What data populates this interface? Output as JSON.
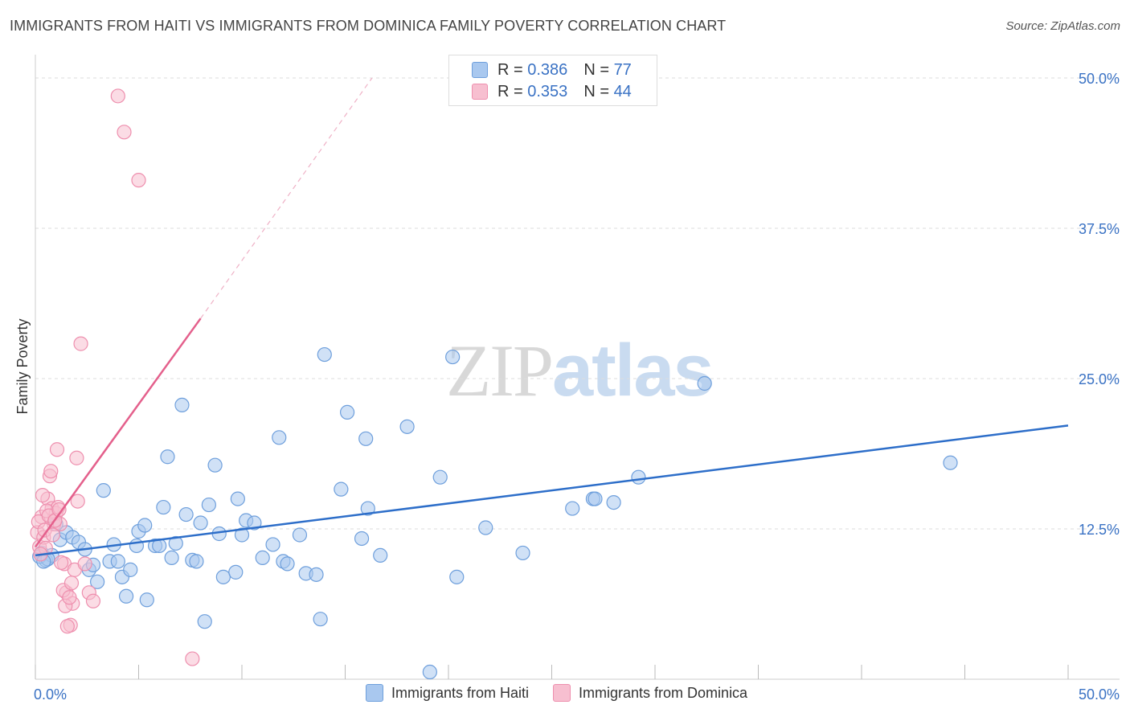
{
  "title": "IMMIGRANTS FROM HAITI VS IMMIGRANTS FROM DOMINICA FAMILY POVERTY CORRELATION CHART",
  "source": "Source: ZipAtlas.com",
  "watermark": {
    "zip": "ZIP",
    "atlas": "atlas"
  },
  "legend_top": {
    "haiti": {
      "r_label": "R = ",
      "r_value": "0.386",
      "n_label": "N = ",
      "n_value": "77"
    },
    "dominica": {
      "r_label": "R = ",
      "r_value": "0.353",
      "n_label": "N = ",
      "n_value": "44"
    }
  },
  "colors": {
    "haiti_fill": "#a9c8ef",
    "haiti_stroke": "#6e9fdc",
    "haiti_line": "#2d6ec9",
    "dominica_fill": "#f7bfd0",
    "dominica_stroke": "#ee8fae",
    "dominica_line": "#e4608c",
    "grid": "#dddddd",
    "tick_label": "#3a72c4"
  },
  "chart_data": {
    "type": "scatter",
    "title": "IMMIGRANTS FROM HAITI VS IMMIGRANTS FROM DOMINICA FAMILY POVERTY CORRELATION CHART",
    "xlabel": "",
    "ylabel": "Family Poverty",
    "xlim": [
      0,
      50
    ],
    "ylim": [
      0,
      50
    ],
    "x_tick_labels": [
      "0.0%",
      "50.0%"
    ],
    "y_ticks": [
      12.5,
      25.0,
      37.5,
      50.0
    ],
    "y_tick_labels": [
      "12.5%",
      "25.0%",
      "37.5%",
      "50.0%"
    ],
    "grid": true,
    "legend": "bottom-center",
    "series": [
      {
        "name": "Immigrants from Haiti",
        "color": "#a9c8ef",
        "trend": {
          "x0": 0,
          "y0": 10.3,
          "x1": 50,
          "y1": 21.1
        },
        "points": [
          [
            0.3,
            10.5
          ],
          [
            0.5,
            9.9
          ],
          [
            0.8,
            10.3
          ],
          [
            1.0,
            12.9
          ],
          [
            1.2,
            11.6
          ],
          [
            1.5,
            12.2
          ],
          [
            1.8,
            11.8
          ],
          [
            2.1,
            11.4
          ],
          [
            2.4,
            10.8
          ],
          [
            2.6,
            9.1
          ],
          [
            2.8,
            9.5
          ],
          [
            3.0,
            8.1
          ],
          [
            3.3,
            15.7
          ],
          [
            3.6,
            9.8
          ],
          [
            3.8,
            11.2
          ],
          [
            4.0,
            9.8
          ],
          [
            4.2,
            8.5
          ],
          [
            4.4,
            6.9
          ],
          [
            4.6,
            9.1
          ],
          [
            4.9,
            11.1
          ],
          [
            5.0,
            12.3
          ],
          [
            5.3,
            12.8
          ],
          [
            5.4,
            6.6
          ],
          [
            5.8,
            11.1
          ],
          [
            6.0,
            11.1
          ],
          [
            6.2,
            14.3
          ],
          [
            6.4,
            18.5
          ],
          [
            6.6,
            10.1
          ],
          [
            6.8,
            11.3
          ],
          [
            7.1,
            22.8
          ],
          [
            7.3,
            13.7
          ],
          [
            7.6,
            9.9
          ],
          [
            7.8,
            9.8
          ],
          [
            8.0,
            13.0
          ],
          [
            8.2,
            4.8
          ],
          [
            8.4,
            14.5
          ],
          [
            8.7,
            17.8
          ],
          [
            8.9,
            12.1
          ],
          [
            9.1,
            8.5
          ],
          [
            9.7,
            8.9
          ],
          [
            9.8,
            15.0
          ],
          [
            10.0,
            12.0
          ],
          [
            10.2,
            13.2
          ],
          [
            10.6,
            13.0
          ],
          [
            11.0,
            10.1
          ],
          [
            11.5,
            11.2
          ],
          [
            11.8,
            20.1
          ],
          [
            12.0,
            9.8
          ],
          [
            12.2,
            9.6
          ],
          [
            12.8,
            12.0
          ],
          [
            13.1,
            8.8
          ],
          [
            13.6,
            8.7
          ],
          [
            13.8,
            5.0
          ],
          [
            14.0,
            27.0
          ],
          [
            14.8,
            15.8
          ],
          [
            15.1,
            22.2
          ],
          [
            15.8,
            11.7
          ],
          [
            16.0,
            20.0
          ],
          [
            16.1,
            14.2
          ],
          [
            16.7,
            10.3
          ],
          [
            18.0,
            21.0
          ],
          [
            19.1,
            0.6
          ],
          [
            19.6,
            16.8
          ],
          [
            20.2,
            26.8
          ],
          [
            20.4,
            8.5
          ],
          [
            21.8,
            12.6
          ],
          [
            23.6,
            10.5
          ],
          [
            26.0,
            14.2
          ],
          [
            27.0,
            15.0
          ],
          [
            27.1,
            15.0
          ],
          [
            28.0,
            14.7
          ],
          [
            29.2,
            16.8
          ],
          [
            32.4,
            24.6
          ],
          [
            44.3,
            18.0
          ],
          [
            0.2,
            10.2
          ],
          [
            0.6,
            10.0
          ],
          [
            0.4,
            9.8
          ]
        ]
      },
      {
        "name": "Immigrants from Dominica",
        "color": "#f7bfd0",
        "trend": {
          "x0": 0,
          "y0": 11.0,
          "x1": 8.0,
          "y1": 30.0
        },
        "trend_extension": {
          "x0": 8.0,
          "y0": 30.0,
          "x1": 16.3,
          "y1": 50.0
        },
        "points": [
          [
            0.1,
            12.2
          ],
          [
            0.2,
            11.0
          ],
          [
            0.3,
            13.5
          ],
          [
            0.4,
            11.8
          ],
          [
            0.5,
            10.9
          ],
          [
            0.6,
            15.0
          ],
          [
            0.7,
            16.9
          ],
          [
            0.8,
            14.2
          ],
          [
            0.9,
            12.9
          ],
          [
            1.0,
            13.8
          ],
          [
            1.1,
            14.3
          ],
          [
            1.2,
            12.9
          ],
          [
            1.4,
            9.6
          ],
          [
            1.5,
            7.2
          ],
          [
            1.7,
            4.5
          ],
          [
            1.8,
            6.3
          ],
          [
            1.9,
            9.1
          ],
          [
            2.0,
            18.4
          ],
          [
            2.2,
            27.9
          ],
          [
            2.4,
            9.6
          ],
          [
            2.6,
            7.2
          ],
          [
            2.8,
            6.5
          ],
          [
            0.15,
            13.1
          ],
          [
            0.25,
            10.4
          ],
          [
            0.35,
            15.3
          ],
          [
            0.45,
            12.4
          ],
          [
            0.55,
            14.0
          ],
          [
            0.65,
            13.6
          ],
          [
            0.75,
            17.3
          ],
          [
            0.85,
            12.0
          ],
          [
            0.95,
            13.2
          ],
          [
            1.05,
            19.1
          ],
          [
            1.15,
            14.1
          ],
          [
            1.25,
            9.7
          ],
          [
            1.35,
            7.4
          ],
          [
            1.45,
            6.1
          ],
          [
            1.55,
            4.4
          ],
          [
            1.65,
            6.8
          ],
          [
            1.75,
            8.0
          ],
          [
            2.05,
            14.8
          ],
          [
            4.0,
            48.5
          ],
          [
            4.3,
            45.5
          ],
          [
            5.0,
            41.5
          ],
          [
            7.6,
            1.7
          ]
        ]
      }
    ]
  }
}
